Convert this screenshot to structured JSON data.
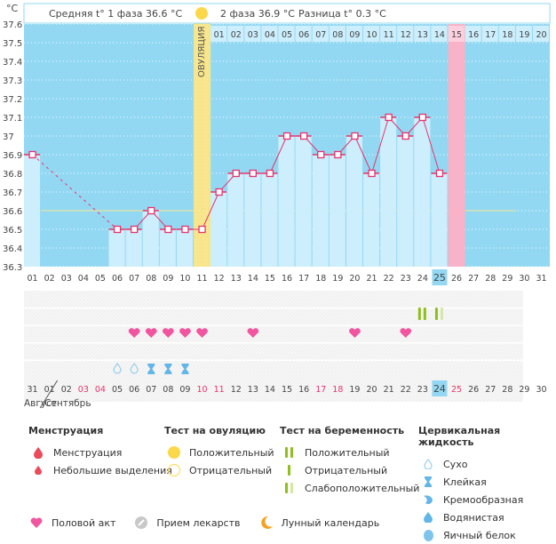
{
  "header": {
    "unit_label": "°C",
    "phase1_label": "Средняя t° 1 фаза 36.6 °C",
    "phase2_label": "2 фаза 36.9 °C",
    "diff_label": "Разница t° 0.3 °C",
    "ovulation_label": "ОВУЛЯЦИЯ"
  },
  "chart_data": {
    "type": "line",
    "title": "",
    "xlabel": "",
    "ylabel": "°C",
    "ylim": [
      36.3,
      37.6
    ],
    "y_ticks": [
      "37.6",
      "37.5",
      "37.4",
      "37.3",
      "37.2",
      "37.1",
      "37",
      "36.9",
      "36.8",
      "36.7",
      "36.6",
      "36.5",
      "36.4",
      "36.3"
    ],
    "cycle_days": [
      "01",
      "02",
      "03",
      "04",
      "05",
      "06",
      "07",
      "08",
      "09",
      "10",
      "11",
      "12",
      "13",
      "14",
      "15",
      "16",
      "17",
      "18",
      "19",
      "20",
      "21",
      "22",
      "23",
      "24",
      "25",
      "26",
      "27",
      "28",
      "29",
      "30",
      "31"
    ],
    "temperatures": [
      36.9,
      null,
      null,
      null,
      null,
      36.5,
      36.5,
      36.6,
      36.5,
      36.5,
      36.5,
      36.7,
      36.8,
      36.8,
      36.8,
      37.0,
      37.0,
      36.9,
      36.9,
      37.0,
      36.8,
      37.1,
      37.0,
      37.1,
      36.8,
      null,
      null,
      null,
      null,
      null,
      null
    ],
    "cover_line": 36.6,
    "ovulation_day": "11",
    "current_cycle_day": "25",
    "next_cycle_start_day": "26",
    "phase2_day_numbers": [
      "01",
      "02",
      "03",
      "04",
      "05",
      "06",
      "07",
      "08",
      "09",
      "10",
      "11",
      "12",
      "13",
      "14",
      "15",
      "16",
      "17",
      "18",
      "19",
      "20"
    ],
    "phase2_highlight": "15",
    "calendar_dates": [
      "31",
      "01",
      "02",
      "03",
      "04",
      "05",
      "06",
      "07",
      "08",
      "09",
      "10",
      "11",
      "12",
      "13",
      "14",
      "15",
      "16",
      "17",
      "18",
      "19",
      "20",
      "21",
      "22",
      "23",
      "24",
      "25",
      "26",
      "27",
      "28",
      "29",
      "30"
    ],
    "calendar_weekend": [
      "03",
      "04",
      "10",
      "11",
      "17",
      "18",
      "25"
    ],
    "calendar_today": "24",
    "months": [
      "Август",
      "Сентябрь"
    ],
    "intercourse_days": [
      "07",
      "08",
      "09",
      "10",
      "11",
      "14",
      "20",
      "23"
    ],
    "pregnancy_tests": [
      {
        "day": "24",
        "result": "positive"
      },
      {
        "day": "25",
        "result": "weak-positive"
      }
    ],
    "cervical_fluid": [
      {
        "day": "06",
        "type": "dry"
      },
      {
        "day": "07",
        "type": "dry"
      },
      {
        "day": "08",
        "type": "sticky"
      },
      {
        "day": "09",
        "type": "sticky"
      },
      {
        "day": "10",
        "type": "sticky"
      }
    ]
  },
  "colors": {
    "chart_bg": "#93d8f3",
    "bar": "#cdeefc",
    "line": "#e8336b",
    "ovulation": "#f7e58a",
    "period": "#f9b3c9",
    "cover_line": "#f5e98a",
    "heart": "#f2559f",
    "weekend": "#e8336b",
    "today": "#93d8f3"
  },
  "legend": {
    "menstruation": {
      "title": "Менструация",
      "items": [
        "Менструация",
        "Небольшие выделения"
      ]
    },
    "ovulation_test": {
      "title": "Тест на овуляцию",
      "items": [
        "Положительный",
        "Отрицательный"
      ]
    },
    "pregnancy_test": {
      "title": "Тест на беременность",
      "items": [
        "Положительный",
        "Отрицательный",
        "Слабоположительный"
      ]
    },
    "cervical_fluid": {
      "title": "Цервикальная жидкость",
      "items": [
        "Сухо",
        "Клейкая",
        "Кремообразная",
        "Водянистая",
        "Яичный белок"
      ]
    },
    "bottom": [
      "Половой акт",
      "Прием лекарств",
      "Лунный календарь"
    ]
  }
}
